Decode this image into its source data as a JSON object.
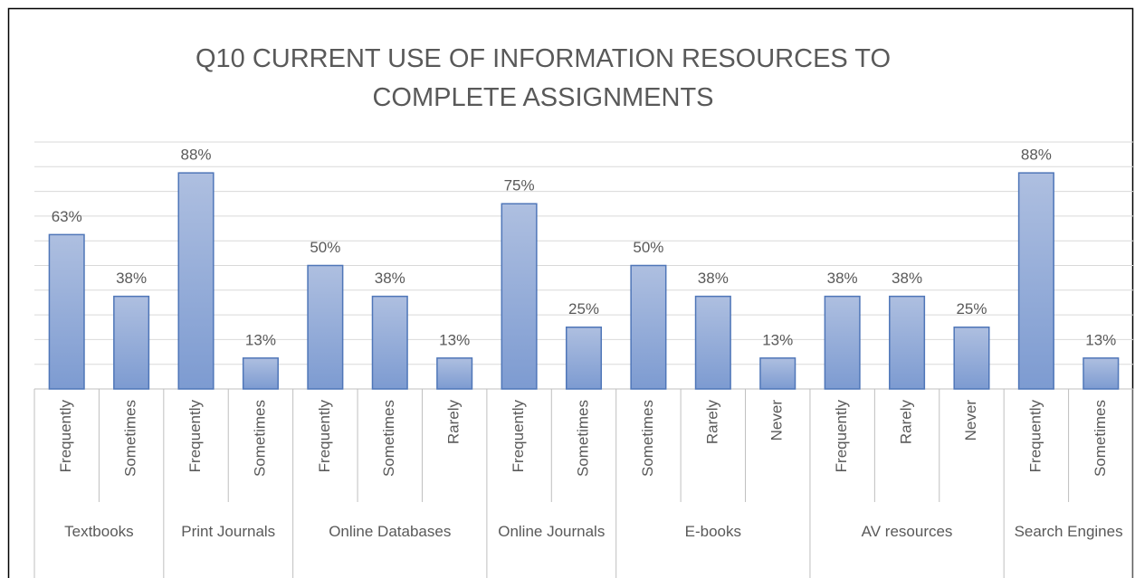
{
  "chart_data": {
    "type": "bar",
    "title": "Q10 CURRENT USE OF INFORMATION RESOURCES TO COMPLETE ASSIGNMENTS",
    "groups": [
      {
        "name": "Textbooks",
        "size": 2
      },
      {
        "name": "Print Journals",
        "size": 2
      },
      {
        "name": "Online Databases",
        "size": 3
      },
      {
        "name": "Online Journals",
        "size": 2
      },
      {
        "name": "E-books",
        "size": 3
      },
      {
        "name": "AV resources",
        "size": 3
      },
      {
        "name": "Search Engines",
        "size": 2
      }
    ],
    "categories": [
      "Frequently",
      "Sometimes",
      "Frequently",
      "Sometimes",
      "Frequently",
      "Sometimes",
      "Rarely",
      "Frequently",
      "Sometimes",
      "Sometimes",
      "Rarely",
      "Never",
      "Frequently",
      "Rarely",
      "Never",
      "Frequently",
      "Sometimes"
    ],
    "values": [
      62.5,
      37.5,
      87.5,
      12.5,
      50,
      37.5,
      12.5,
      75,
      25,
      50,
      37.5,
      12.5,
      37.5,
      37.5,
      25,
      87.5,
      12.5
    ],
    "value_labels": [
      "63%",
      "38%",
      "88%",
      "13%",
      "50%",
      "38%",
      "13%",
      "75%",
      "25%",
      "50%",
      "38%",
      "13%",
      "38%",
      "38%",
      "25%",
      "88%",
      "13%"
    ],
    "color": "#8eaad9",
    "ylim": [
      0,
      100
    ],
    "yticks": [
      0,
      10,
      20,
      30,
      40,
      50,
      60,
      70,
      80,
      90,
      100
    ],
    "grid": true
  }
}
